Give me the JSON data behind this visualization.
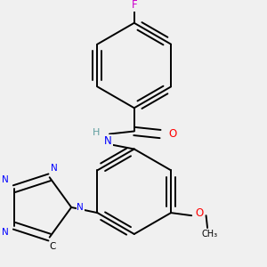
{
  "background_color": "#f0f0f0",
  "figure_size": [
    3.0,
    3.0
  ],
  "dpi": 100,
  "atom_colors": {
    "C": "#000000",
    "H": "#5f9ea0",
    "N": "#0000ff",
    "O": "#ff0000",
    "F": "#cc00cc"
  },
  "bond_color": "#000000",
  "bond_width": 1.4,
  "font_size": 8.5
}
